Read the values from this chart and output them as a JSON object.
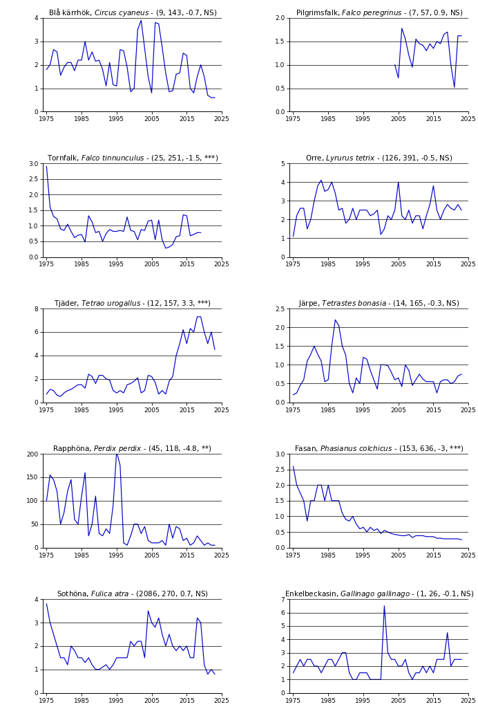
{
  "plots": [
    {
      "title": "Blå kärrhök",
      "italic": "Circus cyaneus",
      "params": "(9, 143, -0.7, NS)",
      "ylim": [
        0,
        4
      ],
      "yticks": [
        0,
        1,
        2,
        3,
        4
      ],
      "years": [
        1975,
        1976,
        1977,
        1978,
        1979,
        1980,
        1981,
        1982,
        1983,
        1984,
        1985,
        1986,
        1987,
        1988,
        1989,
        1990,
        1991,
        1992,
        1993,
        1994,
        1995,
        1996,
        1997,
        1998,
        1999,
        2000,
        2001,
        2002,
        2003,
        2004,
        2005,
        2006,
        2007,
        2008,
        2009,
        2010,
        2011,
        2012,
        2013,
        2014,
        2015,
        2016,
        2017,
        2018,
        2019,
        2020,
        2021,
        2022,
        2023
      ],
      "values": [
        1.8,
        2.0,
        2.65,
        2.55,
        1.55,
        1.9,
        2.1,
        2.1,
        1.75,
        2.2,
        2.2,
        3.0,
        2.2,
        2.55,
        2.15,
        2.2,
        1.8,
        1.1,
        2.1,
        1.15,
        1.1,
        2.65,
        2.6,
        1.9,
        0.85,
        1.0,
        3.5,
        3.9,
        2.7,
        1.5,
        0.8,
        3.8,
        3.75,
        2.75,
        1.65,
        0.85,
        0.9,
        1.6,
        1.65,
        2.5,
        2.4,
        1.0,
        0.8,
        1.5,
        2.0,
        1.5,
        0.7,
        0.6,
        0.6
      ]
    },
    {
      "title": "Pilgrimsfalk",
      "italic": "Falco peregrinus",
      "params": "(7, 57, 0.9, NS)",
      "ylim": [
        0.0,
        2.0
      ],
      "yticks": [
        0.0,
        0.5,
        1.0,
        1.5,
        2.0
      ],
      "years": [
        1975,
        1976,
        1977,
        1978,
        1979,
        1980,
        1981,
        1982,
        1983,
        1984,
        1985,
        1986,
        1987,
        1988,
        1989,
        1990,
        1991,
        1992,
        1993,
        1994,
        1995,
        1996,
        1997,
        1998,
        1999,
        2000,
        2001,
        2002,
        2003,
        2004,
        2005,
        2006,
        2007,
        2008,
        2009,
        2010,
        2011,
        2012,
        2013,
        2014,
        2015,
        2016,
        2017,
        2018,
        2019,
        2020,
        2021,
        2022,
        2023
      ],
      "values": [
        null,
        null,
        null,
        null,
        null,
        null,
        null,
        null,
        null,
        null,
        null,
        null,
        null,
        null,
        null,
        null,
        null,
        null,
        null,
        null,
        null,
        null,
        null,
        null,
        null,
        null,
        null,
        null,
        null,
        1.0,
        0.72,
        1.78,
        1.55,
        1.2,
        0.95,
        1.55,
        1.45,
        1.42,
        1.3,
        1.45,
        1.35,
        1.5,
        1.45,
        1.65,
        1.7,
        1.0,
        0.52,
        1.62,
        1.62
      ]
    },
    {
      "title": "Tornfalk",
      "italic": "Falco tinnunculus",
      "params": "(25, 251, -1.5, ***)",
      "ylim": [
        0.0,
        3.0
      ],
      "yticks": [
        0.0,
        0.5,
        1.0,
        1.5,
        2.0,
        2.5,
        3.0
      ],
      "years": [
        1975,
        1976,
        1977,
        1978,
        1979,
        1980,
        1981,
        1982,
        1983,
        1984,
        1985,
        1986,
        1987,
        1988,
        1989,
        1990,
        1991,
        1992,
        1993,
        1994,
        1995,
        1996,
        1997,
        1998,
        1999,
        2000,
        2001,
        2002,
        2003,
        2004,
        2005,
        2006,
        2007,
        2008,
        2009,
        2010,
        2011,
        2012,
        2013,
        2014,
        2015,
        2016,
        2017,
        2018,
        2019,
        2020,
        2021,
        2022,
        2023
      ],
      "values": [
        2.9,
        1.6,
        1.3,
        1.22,
        0.9,
        0.85,
        1.05,
        0.82,
        0.62,
        0.7,
        0.72,
        0.48,
        1.32,
        1.12,
        0.78,
        0.82,
        0.5,
        0.75,
        0.88,
        0.82,
        0.82,
        0.85,
        0.82,
        1.28,
        0.85,
        0.82,
        0.55,
        0.88,
        0.85,
        1.15,
        1.18,
        0.55,
        1.18,
        0.55,
        0.28,
        0.32,
        0.4,
        0.65,
        0.68,
        1.35,
        1.32,
        0.68,
        0.72,
        0.78,
        0.78,
        null,
        null,
        null,
        null
      ]
    },
    {
      "title": "Orre",
      "italic": "Lyrurus tetrix",
      "params": "(126, 391, -0.5, NS)",
      "ylim": [
        0,
        5
      ],
      "yticks": [
        0,
        1,
        2,
        3,
        4,
        5
      ],
      "years": [
        1975,
        1976,
        1977,
        1978,
        1979,
        1980,
        1981,
        1982,
        1983,
        1984,
        1985,
        1986,
        1987,
        1988,
        1989,
        1990,
        1991,
        1992,
        1993,
        1994,
        1995,
        1996,
        1997,
        1998,
        1999,
        2000,
        2001,
        2002,
        2003,
        2004,
        2005,
        2006,
        2007,
        2008,
        2009,
        2010,
        2011,
        2012,
        2013,
        2014,
        2015,
        2016,
        2017,
        2018,
        2019,
        2020,
        2021,
        2022,
        2023
      ],
      "values": [
        1.1,
        2.2,
        2.6,
        2.6,
        1.5,
        2.0,
        3.0,
        3.8,
        4.1,
        3.5,
        3.6,
        4.0,
        3.4,
        2.5,
        2.6,
        1.8,
        2.0,
        2.6,
        2.0,
        2.5,
        2.5,
        2.5,
        2.2,
        2.3,
        2.5,
        1.2,
        1.5,
        2.2,
        2.0,
        2.5,
        4.0,
        2.2,
        2.0,
        2.5,
        1.8,
        2.2,
        2.2,
        1.5,
        2.2,
        2.8,
        3.8,
        2.5,
        2.0,
        2.5,
        2.8,
        2.6,
        2.5,
        2.8,
        2.5
      ]
    },
    {
      "title": "Tjäder",
      "italic": "Tetrao urogallus",
      "params": "(12, 157, 3.3, ***)",
      "ylim": [
        0,
        8
      ],
      "yticks": [
        0,
        2,
        4,
        6,
        8
      ],
      "years": [
        1975,
        1976,
        1977,
        1978,
        1979,
        1980,
        1981,
        1982,
        1983,
        1984,
        1985,
        1986,
        1987,
        1988,
        1989,
        1990,
        1991,
        1992,
        1993,
        1994,
        1995,
        1996,
        1997,
        1998,
        1999,
        2000,
        2001,
        2002,
        2003,
        2004,
        2005,
        2006,
        2007,
        2008,
        2009,
        2010,
        2011,
        2012,
        2013,
        2014,
        2015,
        2016,
        2017,
        2018,
        2019,
        2020,
        2021,
        2022,
        2023
      ],
      "values": [
        0.7,
        1.1,
        1.0,
        0.6,
        0.5,
        0.8,
        1.0,
        1.1,
        1.3,
        1.5,
        1.5,
        1.2,
        2.4,
        2.2,
        1.6,
        2.3,
        2.3,
        2.0,
        1.9,
        1.0,
        0.8,
        1.0,
        0.8,
        1.5,
        1.6,
        1.8,
        2.1,
        0.8,
        1.0,
        2.3,
        2.2,
        1.7,
        0.7,
        1.0,
        0.7,
        1.8,
        2.2,
        4.0,
        5.0,
        6.2,
        5.0,
        6.3,
        6.0,
        7.3,
        7.3,
        6.0,
        5.0,
        6.0,
        4.5
      ]
    },
    {
      "title": "Järpe",
      "italic": "Tetrastes bonasia",
      "params": "(14, 165, -0.3, NS)",
      "ylim": [
        0.0,
        2.5
      ],
      "yticks": [
        0.0,
        0.5,
        1.0,
        1.5,
        2.0,
        2.5
      ],
      "years": [
        1975,
        1976,
        1977,
        1978,
        1979,
        1980,
        1981,
        1982,
        1983,
        1984,
        1985,
        1986,
        1987,
        1988,
        1989,
        1990,
        1991,
        1992,
        1993,
        1994,
        1995,
        1996,
        1997,
        1998,
        1999,
        2000,
        2001,
        2002,
        2003,
        2004,
        2005,
        2006,
        2007,
        2008,
        2009,
        2010,
        2011,
        2012,
        2013,
        2014,
        2015,
        2016,
        2017,
        2018,
        2019,
        2020,
        2021,
        2022,
        2023
      ],
      "values": [
        0.2,
        0.25,
        0.45,
        0.6,
        1.1,
        1.28,
        1.5,
        1.28,
        1.1,
        0.55,
        0.6,
        1.5,
        2.2,
        2.05,
        1.5,
        1.25,
        0.5,
        0.25,
        0.65,
        0.5,
        1.2,
        1.15,
        0.85,
        0.6,
        0.35,
        1.0,
        1.0,
        0.98,
        0.8,
        0.6,
        0.65,
        0.42,
        1.0,
        0.85,
        0.45,
        0.6,
        0.75,
        0.62,
        0.55,
        0.55,
        0.55,
        0.25,
        0.55,
        0.6,
        0.6,
        0.5,
        0.55,
        0.7,
        0.75
      ]
    },
    {
      "title": "Rapphöna",
      "italic": "Perdix perdix",
      "params": "(45, 118, -4.8, **)",
      "ylim": [
        0,
        200
      ],
      "yticks": [
        0,
        50,
        100,
        150,
        200
      ],
      "years": [
        1975,
        1976,
        1977,
        1978,
        1979,
        1980,
        1981,
        1982,
        1983,
        1984,
        1985,
        1986,
        1987,
        1988,
        1989,
        1990,
        1991,
        1992,
        1993,
        1994,
        1995,
        1996,
        1997,
        1998,
        1999,
        2000,
        2001,
        2002,
        2003,
        2004,
        2005,
        2006,
        2007,
        2008,
        2009,
        2010,
        2011,
        2012,
        2013,
        2014,
        2015,
        2016,
        2017,
        2018,
        2019,
        2020,
        2021,
        2022,
        2023
      ],
      "values": [
        100,
        155,
        145,
        120,
        50,
        75,
        120,
        145,
        60,
        50,
        110,
        160,
        25,
        50,
        110,
        30,
        25,
        40,
        30,
        90,
        205,
        175,
        10,
        5,
        25,
        50,
        50,
        30,
        45,
        15,
        10,
        10,
        10,
        15,
        5,
        50,
        20,
        45,
        40,
        15,
        20,
        5,
        10,
        25,
        15,
        5,
        10,
        5,
        5
      ]
    },
    {
      "title": "Fasan",
      "italic": "Phasianus colchicus",
      "params": "(153, 636, -3, ***)",
      "ylim": [
        0.0,
        3.0
      ],
      "yticks": [
        0.0,
        0.5,
        1.0,
        1.5,
        2.0,
        2.5,
        3.0
      ],
      "years": [
        1975,
        1976,
        1977,
        1978,
        1979,
        1980,
        1981,
        1982,
        1983,
        1984,
        1985,
        1986,
        1987,
        1988,
        1989,
        1990,
        1991,
        1992,
        1993,
        1994,
        1995,
        1996,
        1997,
        1998,
        1999,
        2000,
        2001,
        2002,
        2003,
        2004,
        2005,
        2006,
        2007,
        2008,
        2009,
        2010,
        2011,
        2012,
        2013,
        2014,
        2015,
        2016,
        2017,
        2018,
        2019,
        2020,
        2021,
        2022,
        2023
      ],
      "values": [
        2.6,
        2.0,
        1.75,
        1.5,
        0.85,
        1.5,
        1.5,
        2.0,
        2.0,
        1.5,
        2.0,
        1.5,
        1.5,
        1.5,
        1.1,
        0.9,
        0.85,
        1.0,
        0.75,
        0.6,
        0.65,
        0.5,
        0.65,
        0.55,
        0.6,
        0.45,
        0.55,
        0.5,
        0.45,
        0.42,
        0.4,
        0.38,
        0.38,
        0.42,
        0.32,
        0.38,
        0.38,
        0.38,
        0.35,
        0.35,
        0.35,
        0.3,
        0.3,
        0.28,
        0.28,
        0.28,
        0.28,
        0.28,
        0.25
      ]
    },
    {
      "title": "Sothöna",
      "italic": "Fulica atra",
      "params": "(2086, 270, 0.7, NS)",
      "ylim": [
        0,
        4
      ],
      "yticks": [
        0,
        1,
        2,
        3,
        4
      ],
      "years": [
        1975,
        1976,
        1977,
        1978,
        1979,
        1980,
        1981,
        1982,
        1983,
        1984,
        1985,
        1986,
        1987,
        1988,
        1989,
        1990,
        1991,
        1992,
        1993,
        1994,
        1995,
        1996,
        1997,
        1998,
        1999,
        2000,
        2001,
        2002,
        2003,
        2004,
        2005,
        2006,
        2007,
        2008,
        2009,
        2010,
        2011,
        2012,
        2013,
        2014,
        2015,
        2016,
        2017,
        2018,
        2019,
        2020,
        2021,
        2022,
        2023
      ],
      "values": [
        3.8,
        3.0,
        2.5,
        2.0,
        1.5,
        1.5,
        1.2,
        2.0,
        1.8,
        1.5,
        1.5,
        1.3,
        1.5,
        1.2,
        1.0,
        1.0,
        1.1,
        1.2,
        1.0,
        1.2,
        1.5,
        1.5,
        1.5,
        1.5,
        2.2,
        2.0,
        2.2,
        2.2,
        1.5,
        3.5,
        3.0,
        2.8,
        3.2,
        2.5,
        2.0,
        2.5,
        2.0,
        1.8,
        2.0,
        1.8,
        2.0,
        1.5,
        1.5,
        3.2,
        3.0,
        1.2,
        0.8,
        1.0,
        0.8
      ]
    },
    {
      "title": "Enkelbeckasin",
      "italic": "Gallinago gallinago",
      "params": "(1, 26, -0.1, NS)",
      "ylim": [
        0,
        7
      ],
      "yticks": [
        0,
        1,
        2,
        3,
        4,
        5,
        6,
        7
      ],
      "years": [
        1975,
        1976,
        1977,
        1978,
        1979,
        1980,
        1981,
        1982,
        1983,
        1984,
        1985,
        1986,
        1987,
        1988,
        1989,
        1990,
        1991,
        1992,
        1993,
        1994,
        1995,
        1996,
        1997,
        1998,
        1999,
        2000,
        2001,
        2002,
        2003,
        2004,
        2005,
        2006,
        2007,
        2008,
        2009,
        2010,
        2011,
        2012,
        2013,
        2014,
        2015,
        2016,
        2017,
        2018,
        2019,
        2020,
        2021,
        2022,
        2023
      ],
      "values": [
        1.5,
        2.0,
        2.5,
        2.0,
        2.5,
        2.5,
        2.0,
        2.0,
        1.5,
        2.0,
        2.5,
        2.5,
        2.0,
        2.5,
        3.0,
        3.0,
        1.5,
        1.0,
        1.0,
        1.5,
        1.5,
        1.5,
        1.0,
        1.0,
        1.0,
        1.0,
        6.5,
        3.0,
        2.5,
        2.5,
        2.0,
        2.0,
        2.5,
        1.5,
        1.0,
        1.5,
        1.5,
        2.0,
        1.5,
        2.0,
        1.5,
        2.5,
        2.5,
        2.5,
        4.5,
        2.0,
        2.5,
        2.5,
        2.5
      ]
    }
  ],
  "line_color": "#0000CD",
  "bg_color": "#ffffff",
  "xlim": [
    1974,
    2025
  ],
  "xticks": [
    1975,
    1985,
    1995,
    2005,
    2015,
    2025
  ]
}
